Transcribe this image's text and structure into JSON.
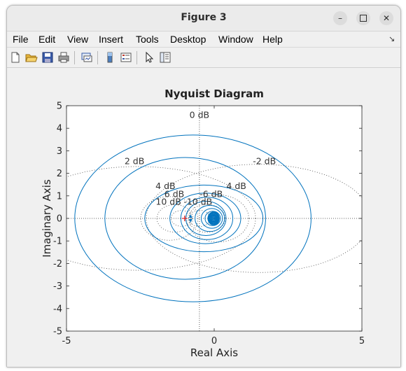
{
  "window": {
    "title": "Figure 3"
  },
  "menubar": {
    "items": [
      "File",
      "Edit",
      "View",
      "Insert",
      "Tools",
      "Desktop",
      "Window",
      "Help"
    ]
  },
  "toolbar": {
    "icons": [
      "new-figure-icon",
      "open-file-icon",
      "save-icon",
      "print-icon",
      "link-plot-icon",
      "insert-colorbar-icon",
      "insert-legend-icon",
      "edit-plot-icon",
      "property-inspector-icon"
    ]
  },
  "chart_data": {
    "type": "line",
    "title": "Nyquist Diagram",
    "xlabel": "Real Axis",
    "ylabel": "Imaginary Axis",
    "xlim": [
      -5,
      5
    ],
    "ylim": [
      -5,
      5
    ],
    "x_ticks": [
      "-5",
      "0",
      "5"
    ],
    "y_ticks": [
      "5",
      "4",
      "3",
      "2",
      "1",
      "0",
      "-1",
      "-2",
      "-3",
      "-4",
      "-5"
    ],
    "grid": "dotted M-circles",
    "db_labels": [
      {
        "text": "0 dB",
        "x": -0.5,
        "y": 4.45
      },
      {
        "text": "2 dB",
        "x": -2.7,
        "y": 2.4
      },
      {
        "text": "-2 dB",
        "x": 1.7,
        "y": 2.4
      },
      {
        "text": "4 dB",
        "x": -1.65,
        "y": 1.3
      },
      {
        "text": "4 dB",
        "x": 0.75,
        "y": 1.3
      },
      {
        "text": "6 dB",
        "x": -1.35,
        "y": 0.95
      },
      {
        "text": "-6 dB",
        "x": -0.1,
        "y": 0.95
      },
      {
        "text": "10 dB",
        "x": -1.55,
        "y": 0.6
      },
      {
        "text": "-10 dB",
        "x": -0.55,
        "y": 0.6
      }
    ],
    "critical_point": [
      -1,
      0
    ],
    "series_color": "#0072bd",
    "curve_ellipses": [
      {
        "cx": -0.72,
        "cy": 0,
        "rx": 4.0,
        "ry": 3.7
      },
      {
        "cx": -0.98,
        "cy": 0,
        "rx": 2.72,
        "ry": 2.7
      },
      {
        "cx": -0.35,
        "cy": 0,
        "rx": 2.0,
        "ry": 1.48
      },
      {
        "cx": -0.3,
        "cy": 0,
        "rx": 1.2,
        "ry": 1.12
      },
      {
        "cx": -0.25,
        "cy": 0,
        "rx": 0.88,
        "ry": 0.94
      },
      {
        "cx": -0.28,
        "cy": 0,
        "rx": 0.68,
        "ry": 0.76
      },
      {
        "cx": -0.15,
        "cy": 0,
        "rx": 0.5,
        "ry": 0.58
      },
      {
        "cx": -0.08,
        "cy": 0,
        "rx": 0.36,
        "ry": 0.44
      },
      {
        "cx": -0.05,
        "cy": 0,
        "rx": 0.26,
        "ry": 0.32
      },
      {
        "cx": -0.03,
        "cy": 0,
        "rx": 0.18,
        "ry": 0.22
      },
      {
        "cx": -0.02,
        "cy": 0,
        "rx": 0.12,
        "ry": 0.16
      }
    ],
    "grid_circles": [
      {
        "cx": -2.6,
        "cy": 0,
        "rx": 4.0,
        "ry": 2.3
      },
      {
        "cx": 1.5,
        "cy": 0,
        "rx": 3.8,
        "ry": 2.4
      },
      {
        "cx": -1.52,
        "cy": 0,
        "rx": 0.97,
        "ry": 0.97
      },
      {
        "cx": 0.12,
        "cy": 0,
        "rx": 1.05,
        "ry": 1.05
      },
      {
        "cx": -1.33,
        "cy": 0,
        "rx": 0.61,
        "ry": 0.61
      },
      {
        "cx": -0.25,
        "cy": 0,
        "rx": 0.62,
        "ry": 0.62
      },
      {
        "cx": -1.11,
        "cy": 0,
        "rx": 0.35,
        "ry": 0.35
      },
      {
        "cx": -0.5,
        "cy": 0,
        "rx": 0.36,
        "ry": 0.36
      }
    ]
  }
}
